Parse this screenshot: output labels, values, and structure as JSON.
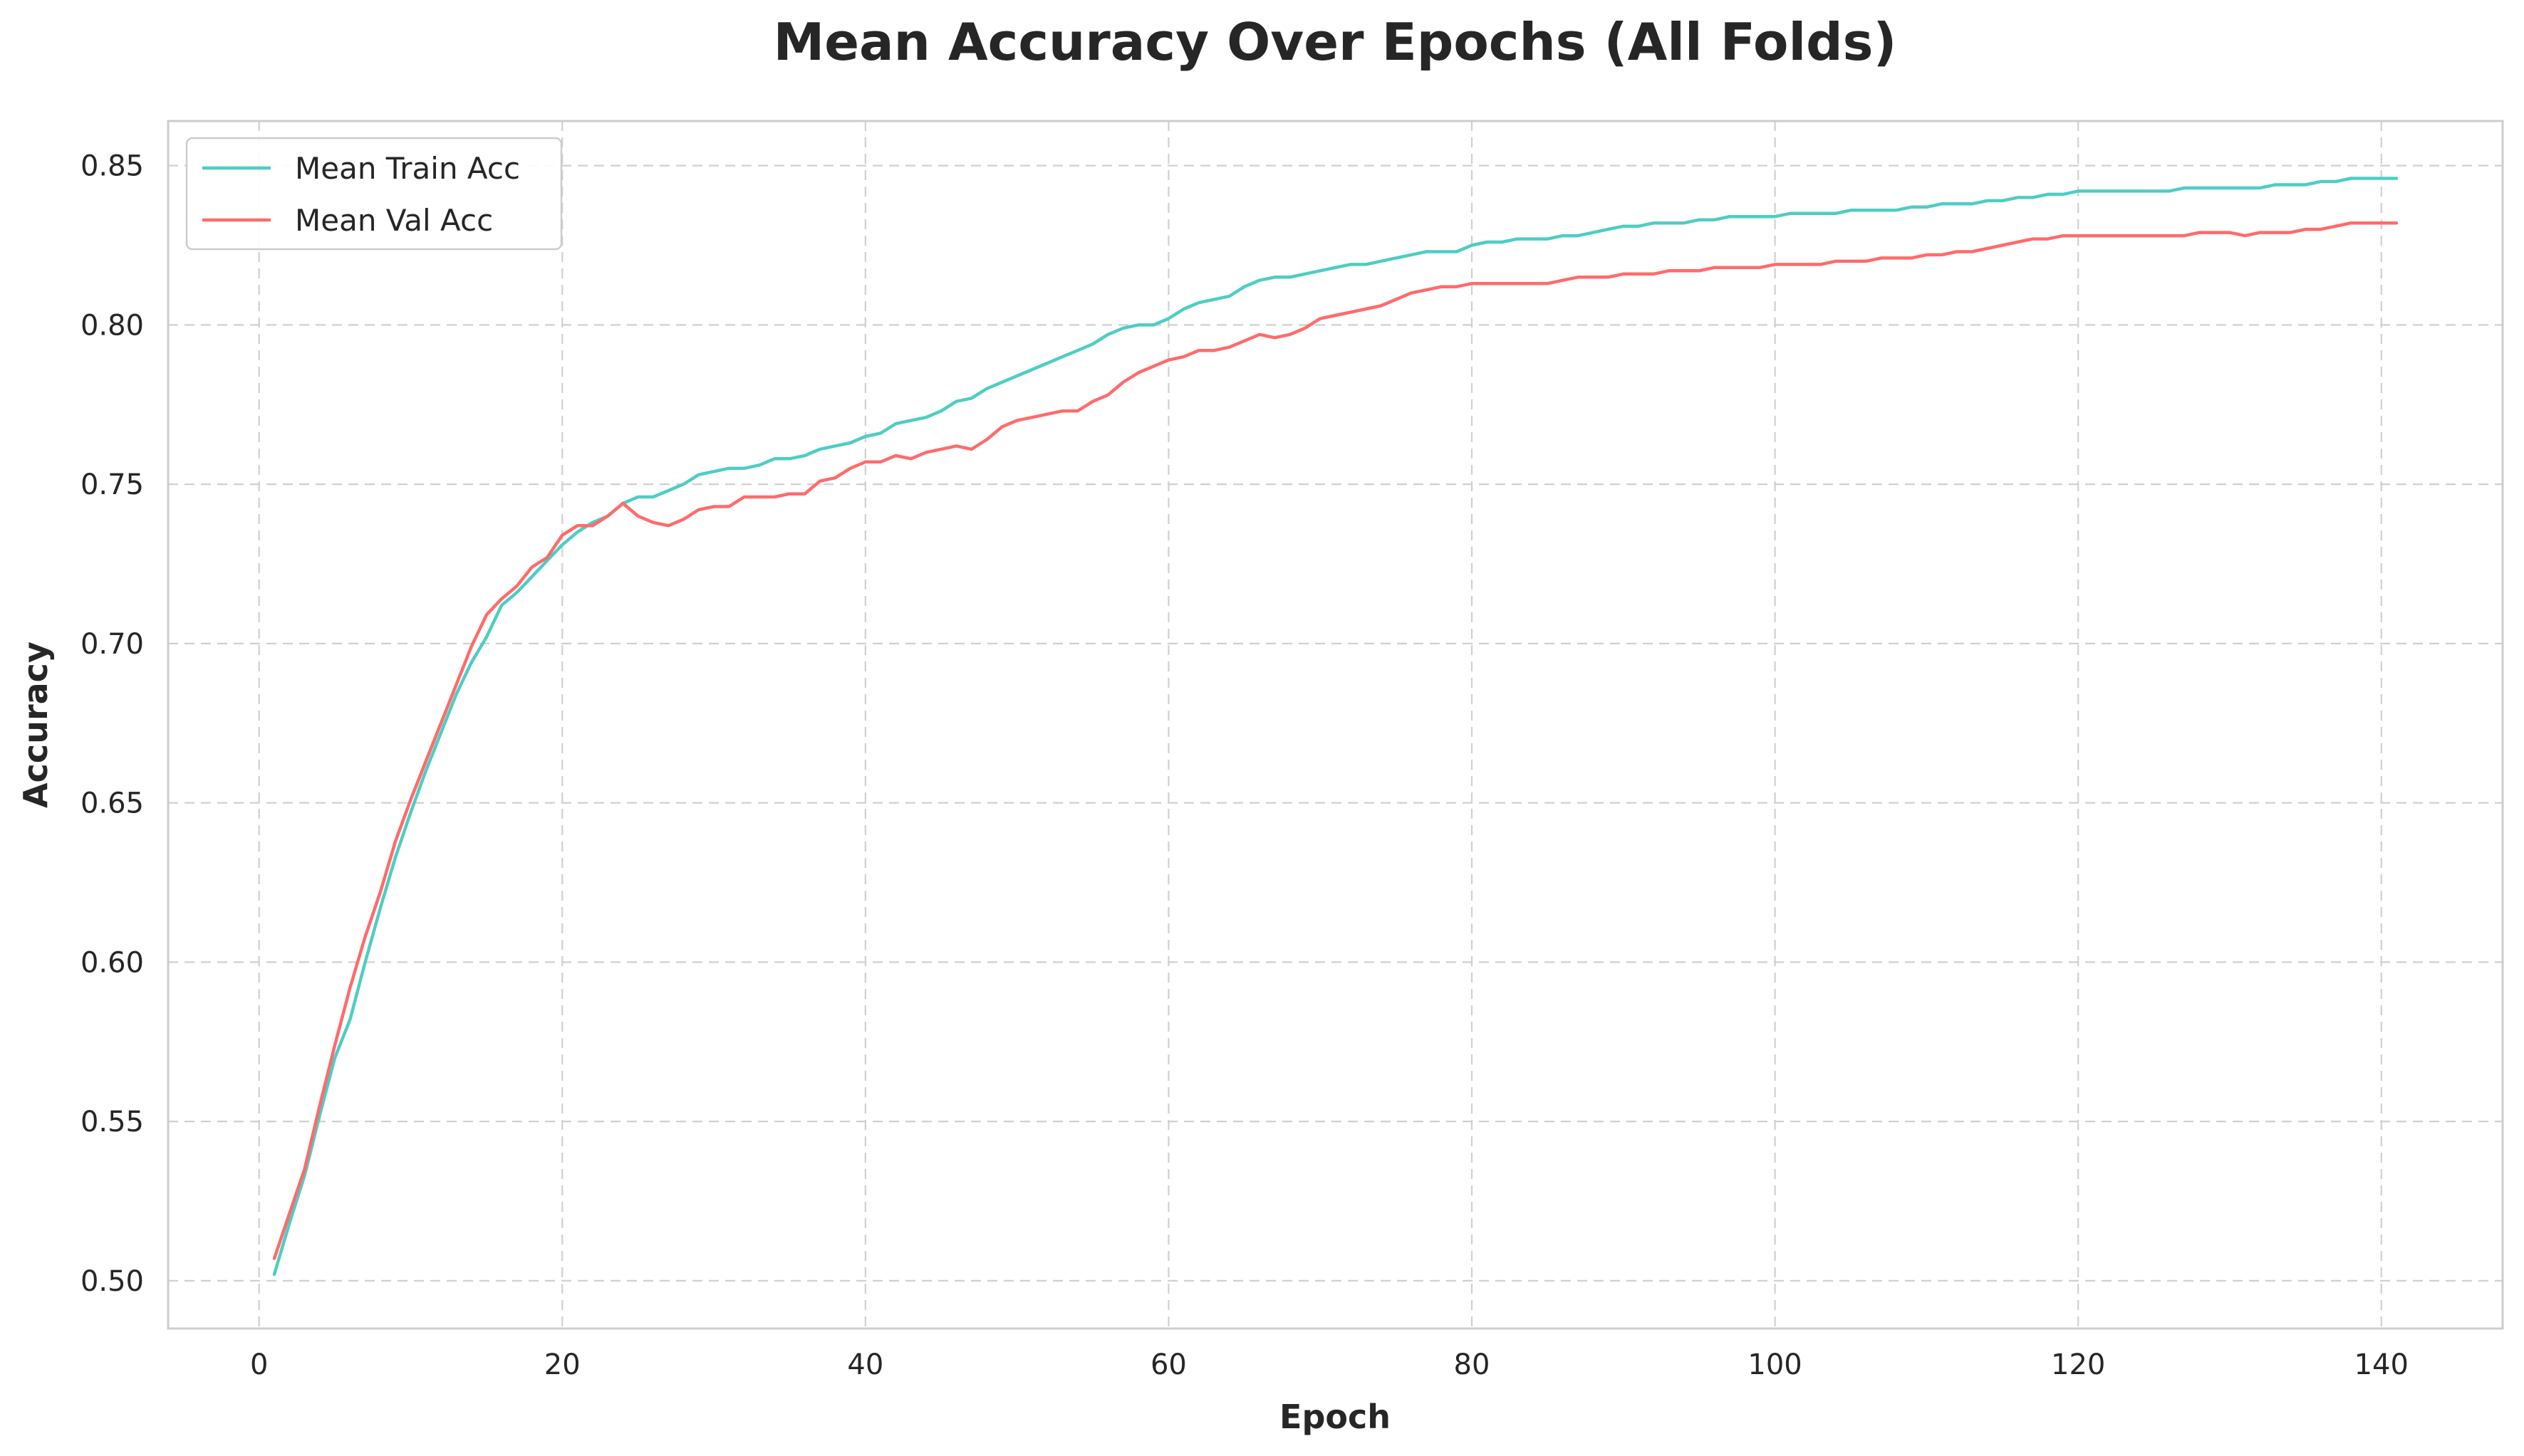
{
  "chart_data": {
    "type": "line",
    "title": "Mean Accuracy Over Epochs (All Folds)",
    "xlabel": "Epoch",
    "ylabel": "Accuracy",
    "xlim": [
      -6,
      148
    ],
    "ylim": [
      0.485,
      0.864
    ],
    "xticks": [
      0,
      20,
      40,
      60,
      80,
      100,
      120,
      140
    ],
    "xtick_labels": [
      "0",
      "20",
      "40",
      "60",
      "80",
      "100",
      "120",
      "140"
    ],
    "yticks": [
      0.5,
      0.55,
      0.6,
      0.65,
      0.7,
      0.75,
      0.8,
      0.85
    ],
    "ytick_labels": [
      "0.50",
      "0.55",
      "0.60",
      "0.65",
      "0.70",
      "0.75",
      "0.80",
      "0.85"
    ],
    "grid": true,
    "legend_position": "top-left",
    "series": [
      {
        "name": "Mean Train Acc",
        "color": "#4ecdc4",
        "x": [
          1,
          2,
          3,
          4,
          5,
          6,
          7,
          8,
          9,
          10,
          11,
          12,
          13,
          14,
          15,
          16,
          17,
          18,
          19,
          20,
          21,
          22,
          23,
          24,
          25,
          26,
          27,
          28,
          29,
          30,
          31,
          32,
          33,
          34,
          35,
          36,
          37,
          38,
          39,
          40,
          41,
          42,
          43,
          44,
          45,
          46,
          47,
          48,
          49,
          50,
          51,
          52,
          53,
          54,
          55,
          56,
          57,
          58,
          59,
          60,
          61,
          62,
          63,
          64,
          65,
          66,
          67,
          68,
          69,
          70,
          71,
          72,
          73,
          74,
          75,
          76,
          77,
          78,
          79,
          80,
          81,
          82,
          83,
          84,
          85,
          86,
          87,
          88,
          89,
          90,
          91,
          92,
          93,
          94,
          95,
          96,
          97,
          98,
          99,
          100,
          101,
          102,
          103,
          104,
          105,
          106,
          107,
          108,
          109,
          110,
          111,
          112,
          113,
          114,
          115,
          116,
          117,
          118,
          119,
          120,
          121,
          122,
          123,
          124,
          125,
          126,
          127,
          128,
          129,
          130,
          131,
          132,
          133,
          134,
          135,
          136,
          137,
          138,
          139,
          140,
          141
        ],
        "y": [
          0.502,
          0.518,
          0.533,
          0.552,
          0.57,
          0.582,
          0.6,
          0.617,
          0.633,
          0.647,
          0.66,
          0.672,
          0.684,
          0.694,
          0.702,
          0.712,
          0.716,
          0.721,
          0.726,
          0.731,
          0.735,
          0.738,
          0.74,
          0.744,
          0.746,
          0.746,
          0.748,
          0.75,
          0.753,
          0.754,
          0.755,
          0.755,
          0.756,
          0.758,
          0.758,
          0.759,
          0.761,
          0.762,
          0.763,
          0.765,
          0.766,
          0.769,
          0.77,
          0.771,
          0.773,
          0.776,
          0.777,
          0.78,
          0.782,
          0.784,
          0.786,
          0.788,
          0.79,
          0.792,
          0.794,
          0.797,
          0.799,
          0.8,
          0.8,
          0.802,
          0.805,
          0.807,
          0.808,
          0.809,
          0.812,
          0.814,
          0.815,
          0.815,
          0.816,
          0.817,
          0.818,
          0.819,
          0.819,
          0.82,
          0.821,
          0.822,
          0.823,
          0.823,
          0.823,
          0.825,
          0.826,
          0.826,
          0.827,
          0.827,
          0.827,
          0.828,
          0.828,
          0.829,
          0.83,
          0.831,
          0.831,
          0.832,
          0.832,
          0.832,
          0.833,
          0.833,
          0.834,
          0.834,
          0.834,
          0.834,
          0.835,
          0.835,
          0.835,
          0.835,
          0.836,
          0.836,
          0.836,
          0.836,
          0.837,
          0.837,
          0.838,
          0.838,
          0.838,
          0.839,
          0.839,
          0.84,
          0.84,
          0.841,
          0.841,
          0.842,
          0.842,
          0.842,
          0.842,
          0.842,
          0.842,
          0.842,
          0.843,
          0.843,
          0.843,
          0.843,
          0.843,
          0.843,
          0.844,
          0.844,
          0.844,
          0.845,
          0.845,
          0.846,
          0.846,
          0.846,
          0.846
        ]
      },
      {
        "name": "Mean Val Acc",
        "color": "#ff6b6b",
        "x": [
          1,
          2,
          3,
          4,
          5,
          6,
          7,
          8,
          9,
          10,
          11,
          12,
          13,
          14,
          15,
          16,
          17,
          18,
          19,
          20,
          21,
          22,
          23,
          24,
          25,
          26,
          27,
          28,
          29,
          30,
          31,
          32,
          33,
          34,
          35,
          36,
          37,
          38,
          39,
          40,
          41,
          42,
          43,
          44,
          45,
          46,
          47,
          48,
          49,
          50,
          51,
          52,
          53,
          54,
          55,
          56,
          57,
          58,
          59,
          60,
          61,
          62,
          63,
          64,
          65,
          66,
          67,
          68,
          69,
          70,
          71,
          72,
          73,
          74,
          75,
          76,
          77,
          78,
          79,
          80,
          81,
          82,
          83,
          84,
          85,
          86,
          87,
          88,
          89,
          90,
          91,
          92,
          93,
          94,
          95,
          96,
          97,
          98,
          99,
          100,
          101,
          102,
          103,
          104,
          105,
          106,
          107,
          108,
          109,
          110,
          111,
          112,
          113,
          114,
          115,
          116,
          117,
          118,
          119,
          120,
          121,
          122,
          123,
          124,
          125,
          126,
          127,
          128,
          129,
          130,
          131,
          132,
          133,
          134,
          135,
          136,
          137,
          138,
          139,
          140,
          141
        ],
        "y": [
          0.507,
          0.521,
          0.535,
          0.555,
          0.574,
          0.592,
          0.608,
          0.622,
          0.638,
          0.651,
          0.663,
          0.675,
          0.687,
          0.699,
          0.709,
          0.714,
          0.718,
          0.724,
          0.727,
          0.734,
          0.737,
          0.737,
          0.74,
          0.744,
          0.74,
          0.738,
          0.737,
          0.739,
          0.742,
          0.743,
          0.743,
          0.746,
          0.746,
          0.746,
          0.747,
          0.747,
          0.751,
          0.752,
          0.755,
          0.757,
          0.757,
          0.759,
          0.758,
          0.76,
          0.761,
          0.762,
          0.761,
          0.764,
          0.768,
          0.77,
          0.771,
          0.772,
          0.773,
          0.773,
          0.776,
          0.778,
          0.782,
          0.785,
          0.787,
          0.789,
          0.79,
          0.792,
          0.792,
          0.793,
          0.795,
          0.797,
          0.796,
          0.797,
          0.799,
          0.802,
          0.803,
          0.804,
          0.805,
          0.806,
          0.808,
          0.81,
          0.811,
          0.812,
          0.812,
          0.813,
          0.813,
          0.813,
          0.813,
          0.813,
          0.813,
          0.814,
          0.815,
          0.815,
          0.815,
          0.816,
          0.816,
          0.816,
          0.817,
          0.817,
          0.817,
          0.818,
          0.818,
          0.818,
          0.818,
          0.819,
          0.819,
          0.819,
          0.819,
          0.82,
          0.82,
          0.82,
          0.821,
          0.821,
          0.821,
          0.822,
          0.822,
          0.823,
          0.823,
          0.824,
          0.825,
          0.826,
          0.827,
          0.827,
          0.828,
          0.828,
          0.828,
          0.828,
          0.828,
          0.828,
          0.828,
          0.828,
          0.828,
          0.829,
          0.829,
          0.829,
          0.828,
          0.829,
          0.829,
          0.829,
          0.83,
          0.83,
          0.831,
          0.832,
          0.832,
          0.832,
          0.832
        ]
      }
    ]
  }
}
